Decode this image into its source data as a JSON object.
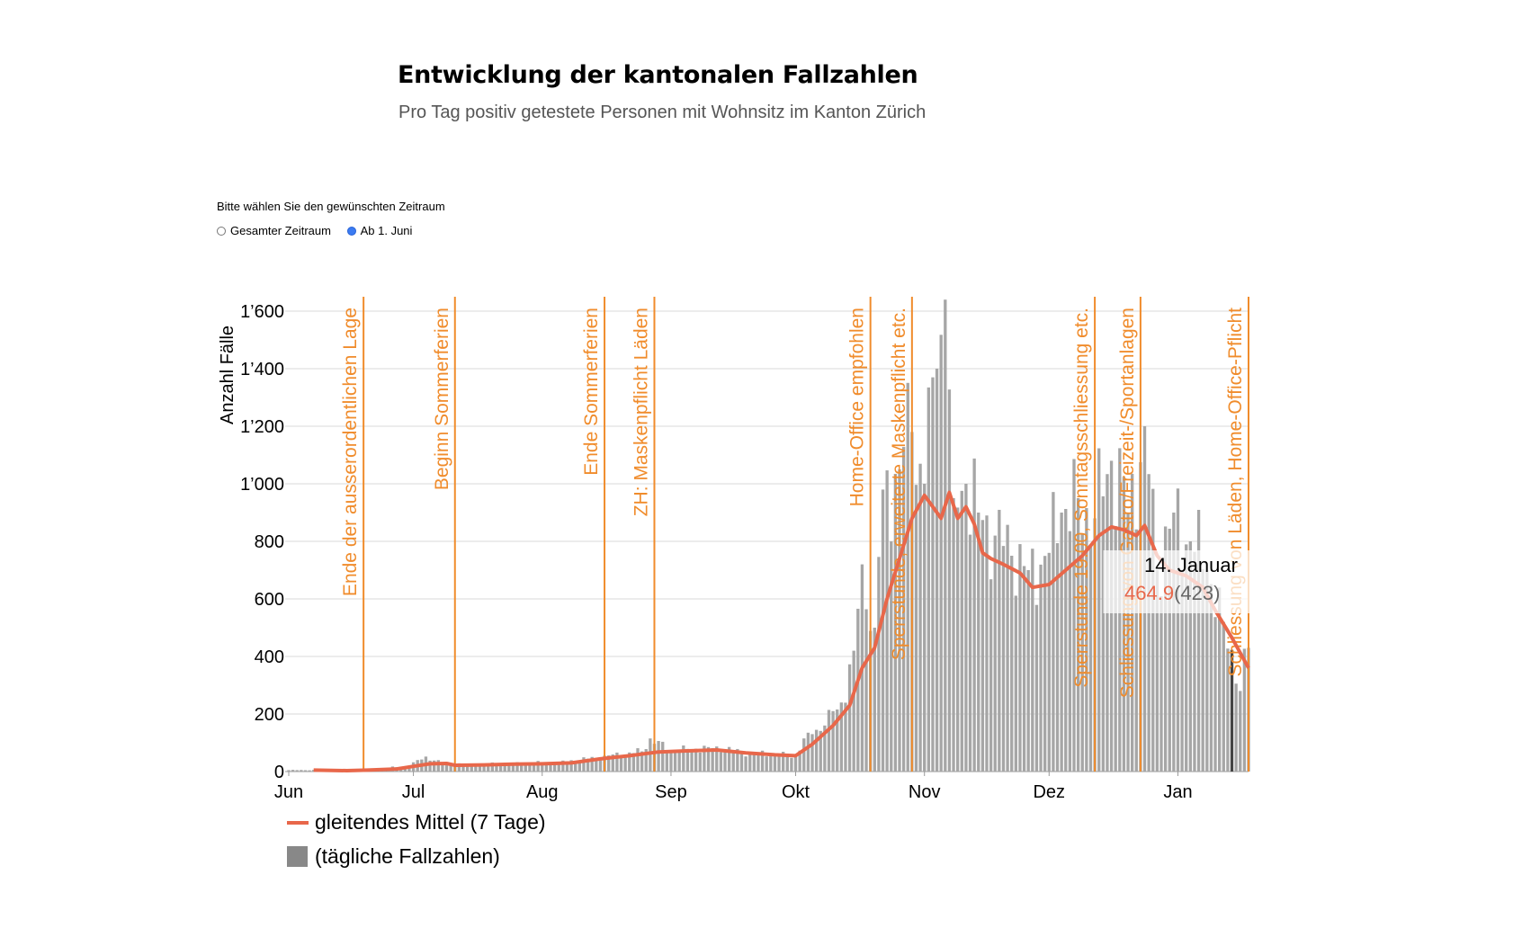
{
  "header": {
    "title": "Entwicklung der kantonalen Fallzahlen",
    "subtitle": "Pro Tag positiv getestete Personen mit Wohnsitz im Kanton Zürich"
  },
  "controls": {
    "prompt": "Bitte wählen Sie den gewünschten Zeitraum",
    "options": [
      {
        "label": "Gesamter Zeitraum",
        "selected": false
      },
      {
        "label": "Ab 1. Juni",
        "selected": true
      }
    ]
  },
  "tooltip": {
    "date": "14. Januar",
    "avg": "464.9",
    "daily": "(423)"
  },
  "colors": {
    "bars": "#a6a6a6",
    "line": "#e8674a",
    "events": "#f08c2c",
    "grid": "#d9d9d9",
    "highlight_bar": "#444444"
  },
  "chart_data": {
    "type": "bar",
    "ylabel": "Anzahl Fälle",
    "ylim": [
      0,
      1650
    ],
    "yticks": [
      0,
      200,
      400,
      600,
      800,
      1000,
      1200,
      1400,
      1600
    ],
    "ytick_labels": [
      "0",
      "200",
      "400",
      "600",
      "800",
      "1’000",
      "1’200",
      "1’400",
      "1’600"
    ],
    "x_start": "2020-06-01",
    "x_end": "2021-01-18",
    "x_tick_labels": [
      {
        "date": "2020-06-01",
        "label": "Jun"
      },
      {
        "date": "2020-07-01",
        "label": "Jul"
      },
      {
        "date": "2020-08-01",
        "label": "Aug"
      },
      {
        "date": "2020-09-01",
        "label": "Sep"
      },
      {
        "date": "2020-10-01",
        "label": "Okt"
      },
      {
        "date": "2020-11-01",
        "label": "Nov"
      },
      {
        "date": "2020-12-01",
        "label": "Dez"
      },
      {
        "date": "2021-01-01",
        "label": "Jan"
      }
    ],
    "highlight_date": "2021-01-14",
    "events": [
      {
        "date": "2020-06-19",
        "label": "Ende der ausserordentlichen Lage"
      },
      {
        "date": "2020-07-11",
        "label": "Beginn Sommerferien"
      },
      {
        "date": "2020-08-16",
        "label": "Ende Sommerferien"
      },
      {
        "date": "2020-08-28",
        "label": "ZH: Maskenpflicht Läden"
      },
      {
        "date": "2020-10-19",
        "label": "Home-Office empfohlen"
      },
      {
        "date": "2020-10-29",
        "label": "Sperrstunde, erweiterte Maskenpflicht etc."
      },
      {
        "date": "2020-12-12",
        "label": "Sperrstunde 19.00, Sonntagsschliessung etc."
      },
      {
        "date": "2020-12-23",
        "label": "Schliessung von Gastro/Freizeit-/Sportanlagen"
      },
      {
        "date": "2021-01-18",
        "label": "Schliessung von Läden, Home-Office-Pflicht"
      }
    ],
    "series": [
      {
        "name": "gleitendes Mittel (7 Tage)",
        "type": "line",
        "points": [
          [
            "2020-06-07",
            5
          ],
          [
            "2020-06-15",
            3
          ],
          [
            "2020-06-20",
            5
          ],
          [
            "2020-06-27",
            9
          ],
          [
            "2020-07-01",
            18
          ],
          [
            "2020-07-05",
            27
          ],
          [
            "2020-07-09",
            28
          ],
          [
            "2020-07-11",
            22
          ],
          [
            "2020-07-18",
            23
          ],
          [
            "2020-07-25",
            26
          ],
          [
            "2020-08-01",
            27
          ],
          [
            "2020-08-08",
            30
          ],
          [
            "2020-08-15",
            44
          ],
          [
            "2020-08-22",
            55
          ],
          [
            "2020-08-29",
            68
          ],
          [
            "2020-09-05",
            72
          ],
          [
            "2020-09-12",
            75
          ],
          [
            "2020-09-19",
            65
          ],
          [
            "2020-09-26",
            58
          ],
          [
            "2020-10-01",
            55
          ],
          [
            "2020-10-05",
            95
          ],
          [
            "2020-10-10",
            160
          ],
          [
            "2020-10-14",
            230
          ],
          [
            "2020-10-17",
            360
          ],
          [
            "2020-10-20",
            430
          ],
          [
            "2020-10-23",
            600
          ],
          [
            "2020-10-26",
            740
          ],
          [
            "2020-10-29",
            880
          ],
          [
            "2020-11-01",
            960
          ],
          [
            "2020-11-03",
            920
          ],
          [
            "2020-11-05",
            880
          ],
          [
            "2020-11-07",
            970
          ],
          [
            "2020-11-09",
            880
          ],
          [
            "2020-11-11",
            920
          ],
          [
            "2020-11-13",
            860
          ],
          [
            "2020-11-15",
            760
          ],
          [
            "2020-11-17",
            740
          ],
          [
            "2020-11-20",
            720
          ],
          [
            "2020-11-24",
            690
          ],
          [
            "2020-11-27",
            640
          ],
          [
            "2020-12-01",
            650
          ],
          [
            "2020-12-05",
            700
          ],
          [
            "2020-12-09",
            750
          ],
          [
            "2020-12-13",
            820
          ],
          [
            "2020-12-16",
            850
          ],
          [
            "2020-12-19",
            840
          ],
          [
            "2020-12-22",
            820
          ],
          [
            "2020-12-24",
            855
          ],
          [
            "2020-12-27",
            750
          ],
          [
            "2020-12-30",
            700
          ],
          [
            "2021-01-03",
            680
          ],
          [
            "2021-01-07",
            640
          ],
          [
            "2021-01-10",
            560
          ],
          [
            "2021-01-14",
            465
          ],
          [
            "2021-01-18",
            360
          ]
        ]
      },
      {
        "name": "(tägliche Fallzahlen)",
        "type": "bar",
        "anchors": [
          [
            "2020-06-01",
            5
          ],
          [
            "2020-06-20",
            6
          ],
          [
            "2020-06-30",
            20
          ],
          [
            "2020-07-04",
            52
          ],
          [
            "2020-07-08",
            28
          ],
          [
            "2020-07-15",
            25
          ],
          [
            "2020-07-25",
            28
          ],
          [
            "2020-08-05",
            32
          ],
          [
            "2020-08-15",
            50
          ],
          [
            "2020-08-25",
            70
          ],
          [
            "2020-08-27",
            115
          ],
          [
            "2020-09-01",
            70
          ],
          [
            "2020-09-10",
            85
          ],
          [
            "2020-09-20",
            65
          ],
          [
            "2020-10-01",
            55
          ],
          [
            "2020-10-04",
            135
          ],
          [
            "2020-10-08",
            160
          ],
          [
            "2020-10-12",
            240
          ],
          [
            "2020-10-15",
            420
          ],
          [
            "2020-10-17",
            720
          ],
          [
            "2020-10-20",
            500
          ],
          [
            "2020-10-22",
            980
          ],
          [
            "2020-10-26",
            1050
          ],
          [
            "2020-10-29",
            1180
          ],
          [
            "2020-11-01",
            1000
          ],
          [
            "2020-11-04",
            1400
          ],
          [
            "2020-11-06",
            1640
          ],
          [
            "2020-11-08",
            950
          ],
          [
            "2020-11-11",
            1000
          ],
          [
            "2020-11-14",
            900
          ],
          [
            "2020-11-18",
            820
          ],
          [
            "2020-11-22",
            750
          ],
          [
            "2020-11-26",
            700
          ],
          [
            "2020-12-01",
            760
          ],
          [
            "2020-12-04",
            900
          ],
          [
            "2020-12-08",
            950
          ],
          [
            "2020-12-12",
            880
          ],
          [
            "2020-12-16",
            1080
          ],
          [
            "2020-12-20",
            900
          ],
          [
            "2020-12-24",
            1200
          ],
          [
            "2020-12-27",
            700
          ],
          [
            "2020-12-31",
            900
          ],
          [
            "2021-01-04",
            800
          ],
          [
            "2021-01-08",
            700
          ],
          [
            "2021-01-12",
            520
          ],
          [
            "2021-01-14",
            423
          ],
          [
            "2021-01-16",
            280
          ],
          [
            "2021-01-18",
            430
          ]
        ]
      }
    ],
    "legend": [
      {
        "label": "gleitendes Mittel (7 Tage)",
        "kind": "line"
      },
      {
        "label": "(tägliche Fallzahlen)",
        "kind": "box"
      }
    ]
  }
}
